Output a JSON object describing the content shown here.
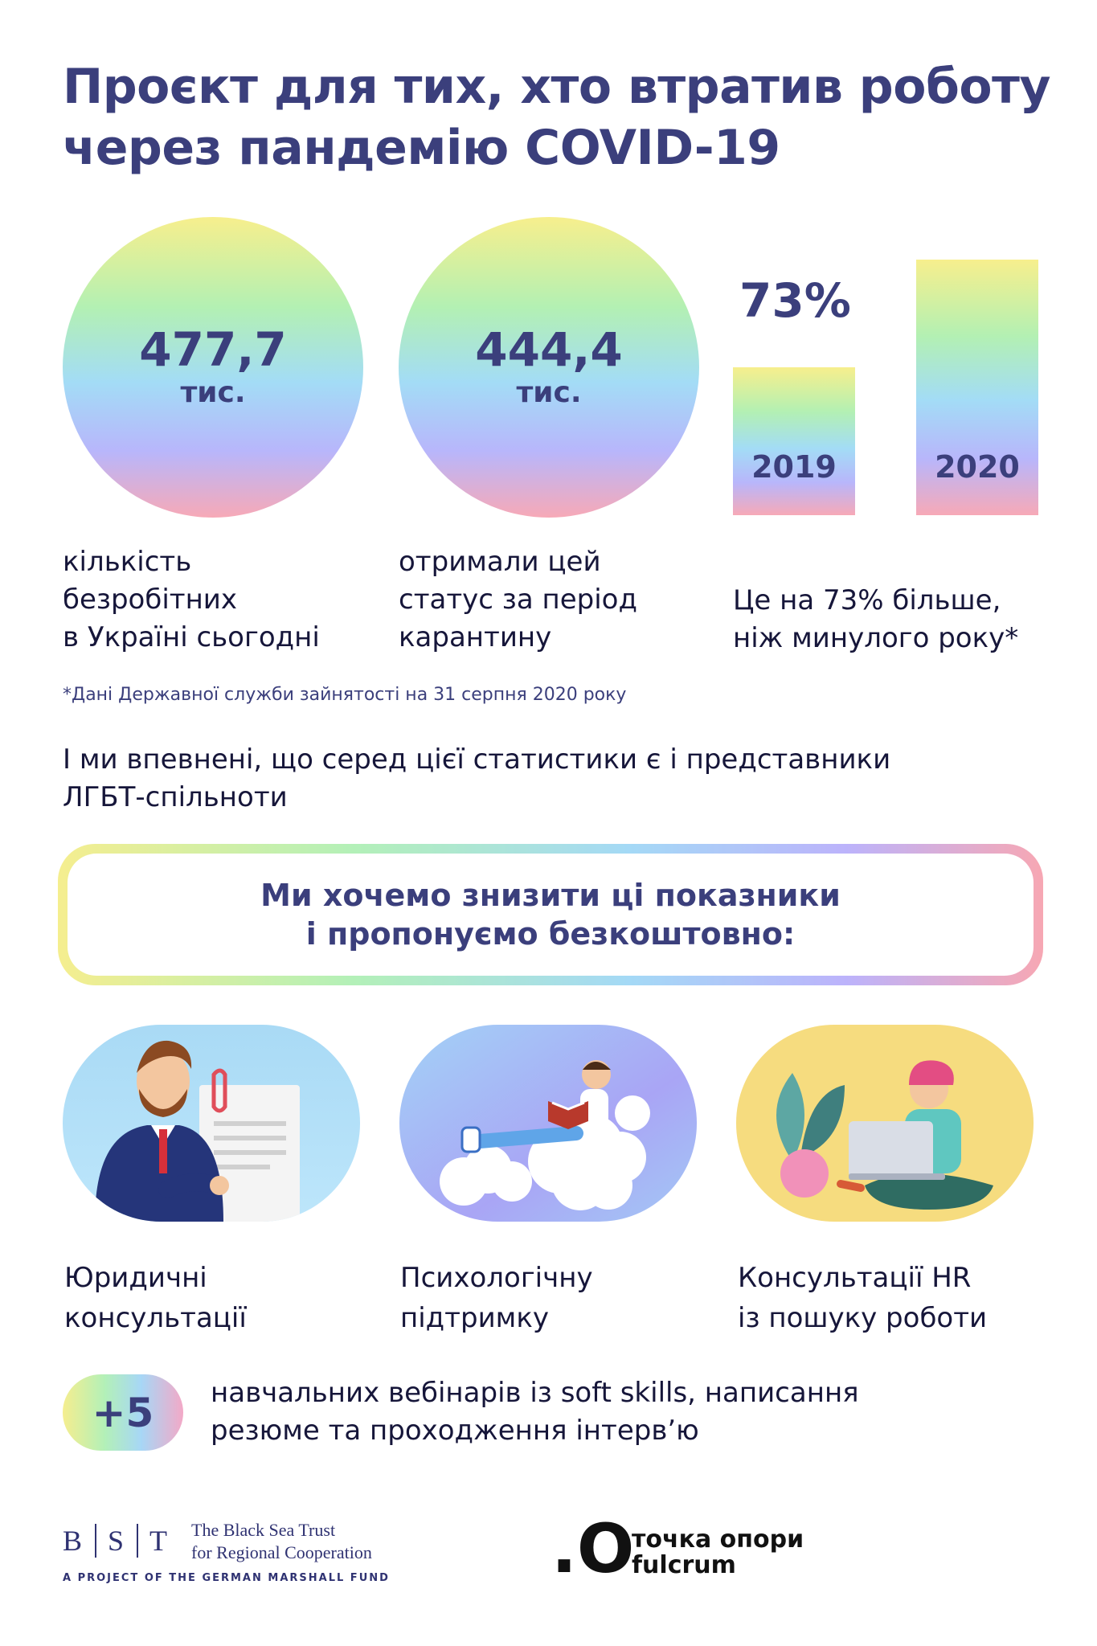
{
  "title": {
    "line1": "Проєкт для тих, хто втратив роботу",
    "line2": "через пандемію COVID-19"
  },
  "stats": {
    "unemployed": {
      "value": "477,7",
      "unit": "тис.",
      "caption": [
        "кількість",
        "безробітних",
        "в Україні сьогодні"
      ]
    },
    "quarantine": {
      "value": "444,4",
      "unit": "тис.",
      "caption": [
        "отримали цей",
        "статус за період",
        "карантину"
      ]
    },
    "growth": {
      "percent": "73%",
      "bar_2019": "2019",
      "bar_2020": "2020",
      "ratio_2019_to_2020": 0.578,
      "caption": [
        "Це на 73% більше,",
        "ніж минулого року*"
      ]
    }
  },
  "footnote": "*Дані Державної служби зайнятості на 31 серпня 2020 року",
  "statement": [
    "І ми впевнені, що серед цієї статистики є і представники",
    "ЛГБТ-спільноти"
  ],
  "offer": {
    "line1": "Ми хочемо знизити ці показники",
    "line2": "і пропонуємо безкоштовно:"
  },
  "services": [
    {
      "icon": "lawyer-illustration-icon",
      "lines": [
        "Юридичні",
        "консультації"
      ]
    },
    {
      "icon": "reading-on-cloud-illustration-icon",
      "lines": [
        "Психологічну",
        "підтримку"
      ]
    },
    {
      "icon": "laptop-worker-illustration-icon",
      "lines": [
        "Консультації HR",
        "із пошуку роботи"
      ]
    }
  ],
  "webinars": {
    "badge": "+5",
    "lines": [
      "навчальних вебінарів із soft skills, написання",
      "резюме та проходження інтерв’ю"
    ]
  },
  "partners": {
    "bst": {
      "letters": [
        "B",
        "S",
        "T"
      ],
      "name1": "The Black Sea Trust",
      "name2": "for Regional Cooperation",
      "tagline": "A PROJECT OF THE GERMAN MARSHALL FUND"
    },
    "fulcrum": {
      "mark": ".O",
      "line1": "точка опори",
      "line2": "fulcrum"
    }
  },
  "colors": {
    "accent": "#3b3f7c",
    "text": "#16163a"
  }
}
